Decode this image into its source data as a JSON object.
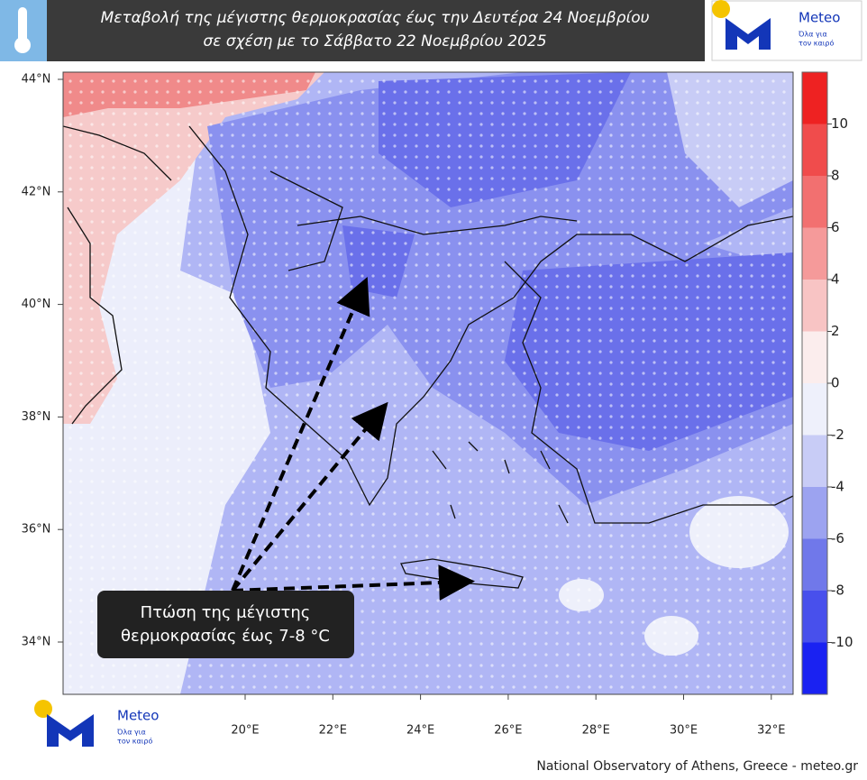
{
  "header": {
    "title_lines": [
      "Μεταβολή της μέγιστης θερμοκρασίας έως την Δευτέρα 24 Νοεμβρίου",
      "σε σχέση με το Σάββατο 22 Νοεμβρίου 2025"
    ]
  },
  "logo": {
    "name": "Meteo",
    "slogan_lines": [
      "Όλα για",
      "τον καιρό"
    ]
  },
  "map": {
    "lat_labels": [
      "44°N",
      "42°N",
      "40°N",
      "38°N",
      "36°N",
      "34°N"
    ],
    "lon_labels": [
      "20°E",
      "22°E",
      "24°E",
      "26°E",
      "28°E",
      "30°E",
      "32°E"
    ],
    "annotation_lines": [
      "Πτώση της μέγιστης",
      "θερμοκρασίας έως 7-8 °C"
    ]
  },
  "colorbar": {
    "lim": [
      -12,
      12
    ],
    "ticks": [
      10,
      8,
      6,
      4,
      2,
      0,
      -2,
      -4,
      -6,
      -8,
      -10
    ],
    "colors": [
      "#1a22f2",
      "#4850ec",
      "#7078ea",
      "#9ca3f0",
      "#c8ccf6",
      "#eef0fb",
      "#fbeded",
      "#f8c4c4",
      "#f59a9a",
      "#f27070",
      "#f04c4c",
      "#ee2222"
    ]
  },
  "footer": "National Observatory of Athens, Greece - meteo.gr"
}
